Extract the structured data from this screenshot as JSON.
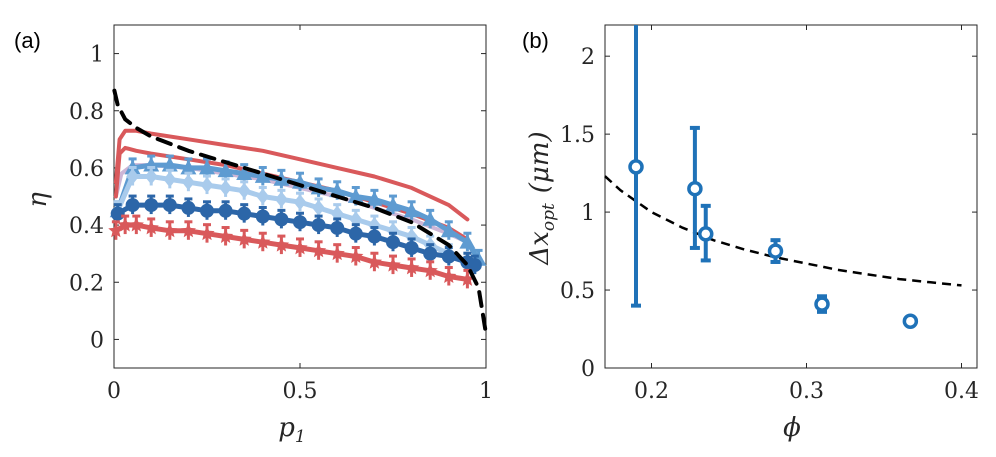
{
  "chart_data": [
    {
      "panel_label": "(a)",
      "type": "line",
      "xlabel_main": "p",
      "xlabel_sub": "1",
      "ylabel": "η",
      "xlim": [
        0,
        1
      ],
      "ylim": [
        -0.1,
        1.1
      ],
      "xticks": [
        0,
        0.5,
        1
      ],
      "xtick_labels": [
        "0",
        "0.5",
        "1"
      ],
      "yticks": [
        0,
        0.2,
        0.4,
        0.6,
        0.8,
        1
      ],
      "ytick_labels": [
        "0",
        "0.2",
        "0.4",
        "0.6",
        "0.8",
        "1"
      ],
      "colors": {
        "red": "#d9595b",
        "light_blue": "#a9cbec",
        "mid_blue": "#5e9bd1",
        "dark_blue": "#2c66a8",
        "lavender": "#c4a9cf",
        "dashed": "#000000"
      },
      "series": [
        {
          "name": "lavender-curve",
          "color": "#c4a9cf",
          "marker": "none",
          "x": [
            0.005,
            0.02,
            0.05,
            0.1,
            0.2,
            0.3,
            0.4,
            0.5,
            0.6,
            0.7,
            0.8,
            0.9,
            0.95
          ],
          "y": [
            0.5,
            0.58,
            0.61,
            0.61,
            0.6,
            0.58,
            0.56,
            0.53,
            0.5,
            0.46,
            0.42,
            0.37,
            0.34
          ]
        },
        {
          "name": "red-solid-upper",
          "color": "#d9595b",
          "marker": "none",
          "x": [
            0.005,
            0.015,
            0.03,
            0.06,
            0.1,
            0.2,
            0.3,
            0.4,
            0.5,
            0.6,
            0.7,
            0.8,
            0.9,
            0.95
          ],
          "y": [
            0.55,
            0.7,
            0.73,
            0.73,
            0.72,
            0.7,
            0.68,
            0.66,
            0.63,
            0.6,
            0.57,
            0.53,
            0.47,
            0.42
          ]
        },
        {
          "name": "red-solid-lower",
          "color": "#d9595b",
          "marker": "none",
          "x": [
            0.005,
            0.015,
            0.03,
            0.06,
            0.1,
            0.2,
            0.3,
            0.4,
            0.5,
            0.6,
            0.7,
            0.8,
            0.9,
            0.95
          ],
          "y": [
            0.5,
            0.65,
            0.67,
            0.66,
            0.65,
            0.63,
            0.61,
            0.58,
            0.55,
            0.52,
            0.48,
            0.44,
            0.39,
            0.35
          ]
        },
        {
          "name": "mid-blue-triangles",
          "color": "#5e9bd1",
          "marker": "triangle",
          "x": [
            0.01,
            0.05,
            0.1,
            0.15,
            0.2,
            0.25,
            0.3,
            0.35,
            0.4,
            0.45,
            0.5,
            0.55,
            0.6,
            0.65,
            0.7,
            0.75,
            0.8,
            0.85,
            0.9,
            0.95,
            0.98
          ],
          "y": [
            0.45,
            0.6,
            0.61,
            0.61,
            0.6,
            0.6,
            0.59,
            0.58,
            0.57,
            0.56,
            0.55,
            0.53,
            0.52,
            0.5,
            0.49,
            0.47,
            0.45,
            0.42,
            0.38,
            0.34,
            0.28
          ]
        },
        {
          "name": "light-blue-diamonds",
          "color": "#a9cbec",
          "marker": "diamond",
          "x": [
            0.01,
            0.05,
            0.1,
            0.15,
            0.2,
            0.25,
            0.3,
            0.35,
            0.4,
            0.45,
            0.5,
            0.55,
            0.6,
            0.65,
            0.7,
            0.75,
            0.8,
            0.85,
            0.9,
            0.95
          ],
          "y": [
            0.45,
            0.57,
            0.57,
            0.56,
            0.55,
            0.54,
            0.53,
            0.52,
            0.5,
            0.49,
            0.48,
            0.46,
            0.44,
            0.42,
            0.4,
            0.38,
            0.36,
            0.33,
            0.3,
            0.27
          ]
        },
        {
          "name": "dark-blue-circles",
          "color": "#2c66a8",
          "marker": "circle",
          "x": [
            0.01,
            0.05,
            0.1,
            0.15,
            0.2,
            0.25,
            0.3,
            0.35,
            0.4,
            0.45,
            0.5,
            0.55,
            0.6,
            0.65,
            0.7,
            0.75,
            0.8,
            0.85,
            0.9,
            0.95,
            0.97
          ],
          "y": [
            0.44,
            0.47,
            0.47,
            0.47,
            0.46,
            0.45,
            0.45,
            0.44,
            0.43,
            0.42,
            0.41,
            0.4,
            0.39,
            0.37,
            0.36,
            0.34,
            0.32,
            0.3,
            0.29,
            0.27,
            0.26
          ]
        },
        {
          "name": "red-stars",
          "color": "#d9595b",
          "marker": "star",
          "x": [
            0.005,
            0.03,
            0.06,
            0.1,
            0.15,
            0.2,
            0.25,
            0.3,
            0.35,
            0.4,
            0.45,
            0.5,
            0.55,
            0.6,
            0.65,
            0.7,
            0.75,
            0.8,
            0.85,
            0.9,
            0.95
          ],
          "y": [
            0.38,
            0.4,
            0.4,
            0.39,
            0.38,
            0.38,
            0.37,
            0.36,
            0.35,
            0.34,
            0.33,
            0.32,
            0.31,
            0.3,
            0.29,
            0.27,
            0.26,
            0.25,
            0.24,
            0.22,
            0.21
          ]
        },
        {
          "name": "theory-dashed",
          "color": "#000000",
          "marker": "none",
          "dashed": true,
          "x": [
            0.001,
            0.01,
            0.03,
            0.06,
            0.1,
            0.2,
            0.3,
            0.4,
            0.5,
            0.6,
            0.7,
            0.8,
            0.9,
            0.95,
            0.98,
            1.0
          ],
          "y": [
            0.87,
            0.82,
            0.77,
            0.74,
            0.71,
            0.66,
            0.62,
            0.58,
            0.54,
            0.5,
            0.46,
            0.41,
            0.33,
            0.26,
            0.18,
            0.02
          ]
        }
      ]
    },
    {
      "panel_label": "(b)",
      "type": "scatter",
      "xlabel": "ϕ",
      "ylabel_main": "Δx",
      "ylabel_sub": "opt",
      "ylabel_units": "(μm)",
      "xlim": [
        0.17,
        0.41
      ],
      "ylim": [
        0,
        2.2
      ],
      "xticks": [
        0.2,
        0.3,
        0.4
      ],
      "xtick_labels": [
        "0.2",
        "0.3",
        "0.4"
      ],
      "yticks": [
        0,
        0.5,
        1,
        1.5,
        2
      ],
      "ytick_labels": [
        "0",
        "0.5",
        "1",
        "1.5",
        "2"
      ],
      "marker_color": "#1f72b8",
      "fit_color": "#000000",
      "points": [
        {
          "x": 0.19,
          "y": 1.29,
          "err_low": 0.4,
          "err_high": 2.25
        },
        {
          "x": 0.228,
          "y": 1.15,
          "err_low": 0.77,
          "err_high": 1.54
        },
        {
          "x": 0.235,
          "y": 0.86,
          "err_low": 0.69,
          "err_high": 1.04
        },
        {
          "x": 0.28,
          "y": 0.75,
          "err_low": 0.68,
          "err_high": 0.82
        },
        {
          "x": 0.31,
          "y": 0.41,
          "err_low": 0.36,
          "err_high": 0.46
        },
        {
          "x": 0.367,
          "y": 0.3,
          "err_low": 0.28,
          "err_high": 0.32
        }
      ],
      "fit_curve": {
        "x": [
          0.17,
          0.18,
          0.19,
          0.2,
          0.21,
          0.22,
          0.23,
          0.24,
          0.25,
          0.26,
          0.28,
          0.3,
          0.32,
          0.34,
          0.36,
          0.38,
          0.4
        ],
        "y": [
          1.23,
          1.14,
          1.07,
          1.0,
          0.95,
          0.9,
          0.86,
          0.82,
          0.79,
          0.76,
          0.71,
          0.67,
          0.63,
          0.6,
          0.57,
          0.55,
          0.53
        ]
      }
    }
  ]
}
